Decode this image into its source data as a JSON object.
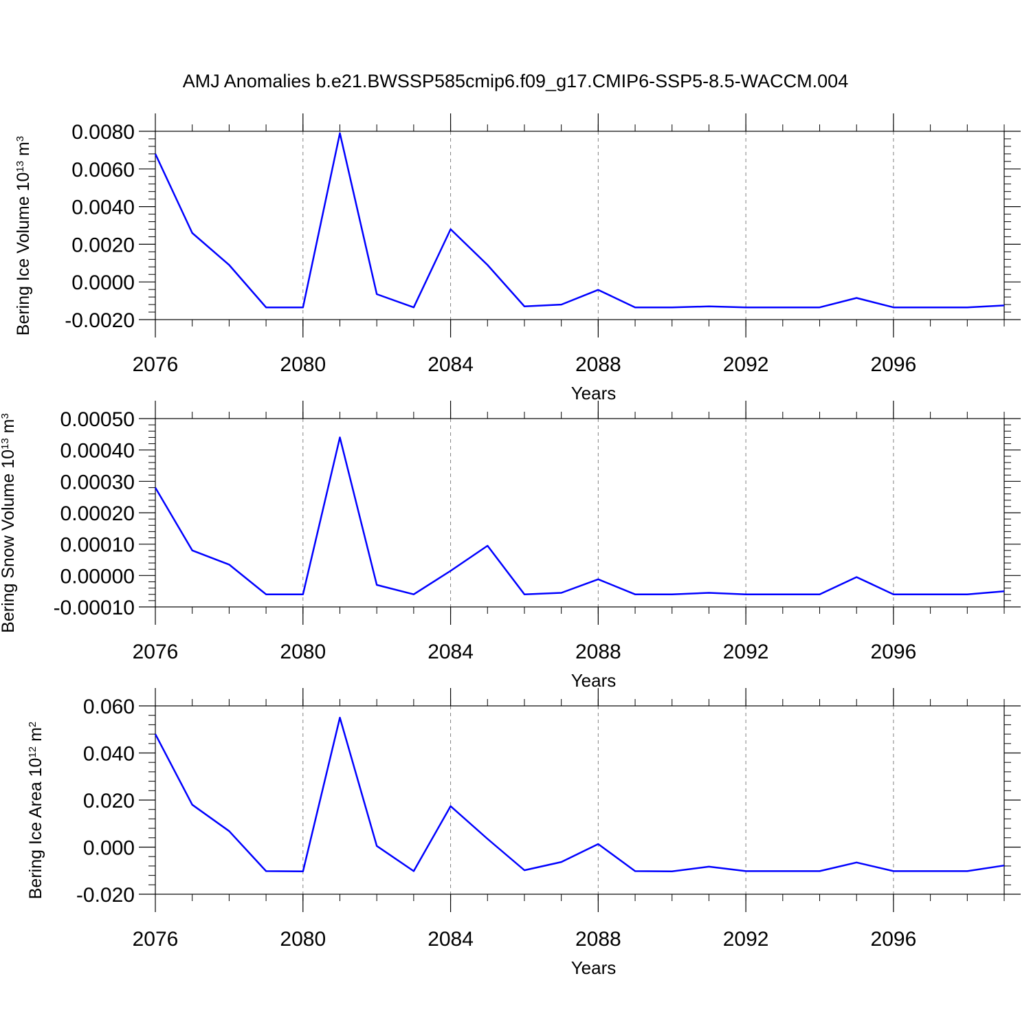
{
  "figure": {
    "title": "AMJ Anomalies b.e21.BWSSP585cmip6.f09_g17.CMIP6-SSP5-8.5-WACCM.004",
    "line_color": "#0000ff"
  },
  "chart_data": [
    {
      "type": "line",
      "title": "",
      "xlabel": "Years",
      "ylabel": {
        "main": "Bering Ice Volume 10",
        "sup1": "13",
        "mid": " m",
        "sup2": "3"
      },
      "xlim": [
        2076,
        2099
      ],
      "ylim": [
        -0.002,
        0.008
      ],
      "x_ticks": [
        2076,
        2080,
        2084,
        2088,
        2092,
        2096
      ],
      "x_tick_labels": [
        "2076",
        "2080",
        "2084",
        "2088",
        "2092",
        "2096"
      ],
      "y_ticks": [
        -0.002,
        0.0,
        0.002,
        0.004,
        0.006,
        0.008
      ],
      "y_tick_labels": [
        "-0.0020",
        "0.0000",
        "0.0020",
        "0.0040",
        "0.0060",
        "0.0080"
      ],
      "grid": "vertical dashed at major x ticks",
      "series": [
        {
          "x": [
            2076,
            2077,
            2078,
            2079,
            2080,
            2081,
            2082,
            2083,
            2084,
            2085,
            2086,
            2087,
            2088,
            2089,
            2090,
            2091,
            2092,
            2093,
            2094,
            2095,
            2096,
            2097,
            2098,
            2099
          ],
          "values": [
            0.0068,
            0.0026,
            0.0009,
            -0.00135,
            -0.00135,
            0.0079,
            -0.00065,
            -0.00135,
            0.0028,
            0.0009,
            -0.0013,
            -0.0012,
            -0.00042,
            -0.00135,
            -0.00135,
            -0.0013,
            -0.00135,
            -0.00135,
            -0.00135,
            -0.00085,
            -0.00135,
            -0.00135,
            -0.00135,
            -0.00125
          ]
        }
      ]
    },
    {
      "type": "line",
      "title": "",
      "xlabel": "Years",
      "ylabel": {
        "main": "Bering Snow Volume 10",
        "sup1": "13",
        "mid": " m",
        "sup2": "3"
      },
      "xlim": [
        2076,
        2099
      ],
      "ylim": [
        -0.0001,
        0.0005
      ],
      "x_ticks": [
        2076,
        2080,
        2084,
        2088,
        2092,
        2096
      ],
      "x_tick_labels": [
        "2076",
        "2080",
        "2084",
        "2088",
        "2092",
        "2096"
      ],
      "y_ticks": [
        -0.0001,
        0.0,
        0.0001,
        0.0002,
        0.0003,
        0.0004,
        0.0005
      ],
      "y_tick_labels": [
        "-0.00010",
        "0.00000",
        "0.00010",
        "0.00020",
        "0.00030",
        "0.00040",
        "0.00050"
      ],
      "grid": "vertical dashed at major x ticks",
      "series": [
        {
          "x": [
            2076,
            2077,
            2078,
            2079,
            2080,
            2081,
            2082,
            2083,
            2084,
            2085,
            2086,
            2087,
            2088,
            2089,
            2090,
            2091,
            2092,
            2093,
            2094,
            2095,
            2096,
            2097,
            2098,
            2099
          ],
          "values": [
            0.00028,
            8e-05,
            3.5e-05,
            -6e-05,
            -6e-05,
            0.00044,
            -3e-05,
            -6e-05,
            1.5e-05,
            9.5e-05,
            -6e-05,
            -5.5e-05,
            -1.2e-05,
            -6e-05,
            -6e-05,
            -5.5e-05,
            -6e-05,
            -6e-05,
            -6e-05,
            -5e-06,
            -6e-05,
            -6e-05,
            -6e-05,
            -5e-05
          ]
        }
      ]
    },
    {
      "type": "line",
      "title": "",
      "xlabel": "Years",
      "ylabel": {
        "main": "Bering Ice Area 10",
        "sup1": "12",
        "mid": " m",
        "sup2": "2"
      },
      "xlim": [
        2076,
        2099
      ],
      "ylim": [
        -0.02,
        0.06
      ],
      "x_ticks": [
        2076,
        2080,
        2084,
        2088,
        2092,
        2096
      ],
      "x_tick_labels": [
        "2076",
        "2080",
        "2084",
        "2088",
        "2092",
        "2096"
      ],
      "y_ticks": [
        -0.02,
        0.0,
        0.02,
        0.04,
        0.06
      ],
      "y_tick_labels": [
        "-0.020",
        "0.000",
        "0.020",
        "0.040",
        "0.060"
      ],
      "grid": "vertical dashed at major x ticks",
      "series": [
        {
          "x": [
            2076,
            2077,
            2078,
            2079,
            2080,
            2081,
            2082,
            2083,
            2084,
            2085,
            2086,
            2087,
            2088,
            2089,
            2090,
            2091,
            2092,
            2093,
            2094,
            2095,
            2096,
            2097,
            2098,
            2099
          ],
          "values": [
            0.048,
            0.018,
            0.0068,
            -0.0102,
            -0.0103,
            0.055,
            0.0005,
            -0.0102,
            0.0174,
            0.0035,
            -0.0098,
            -0.0063,
            0.0013,
            -0.0102,
            -0.0103,
            -0.0083,
            -0.0102,
            -0.0102,
            -0.0102,
            -0.0065,
            -0.0102,
            -0.0102,
            -0.0102,
            -0.0078
          ]
        }
      ]
    }
  ]
}
